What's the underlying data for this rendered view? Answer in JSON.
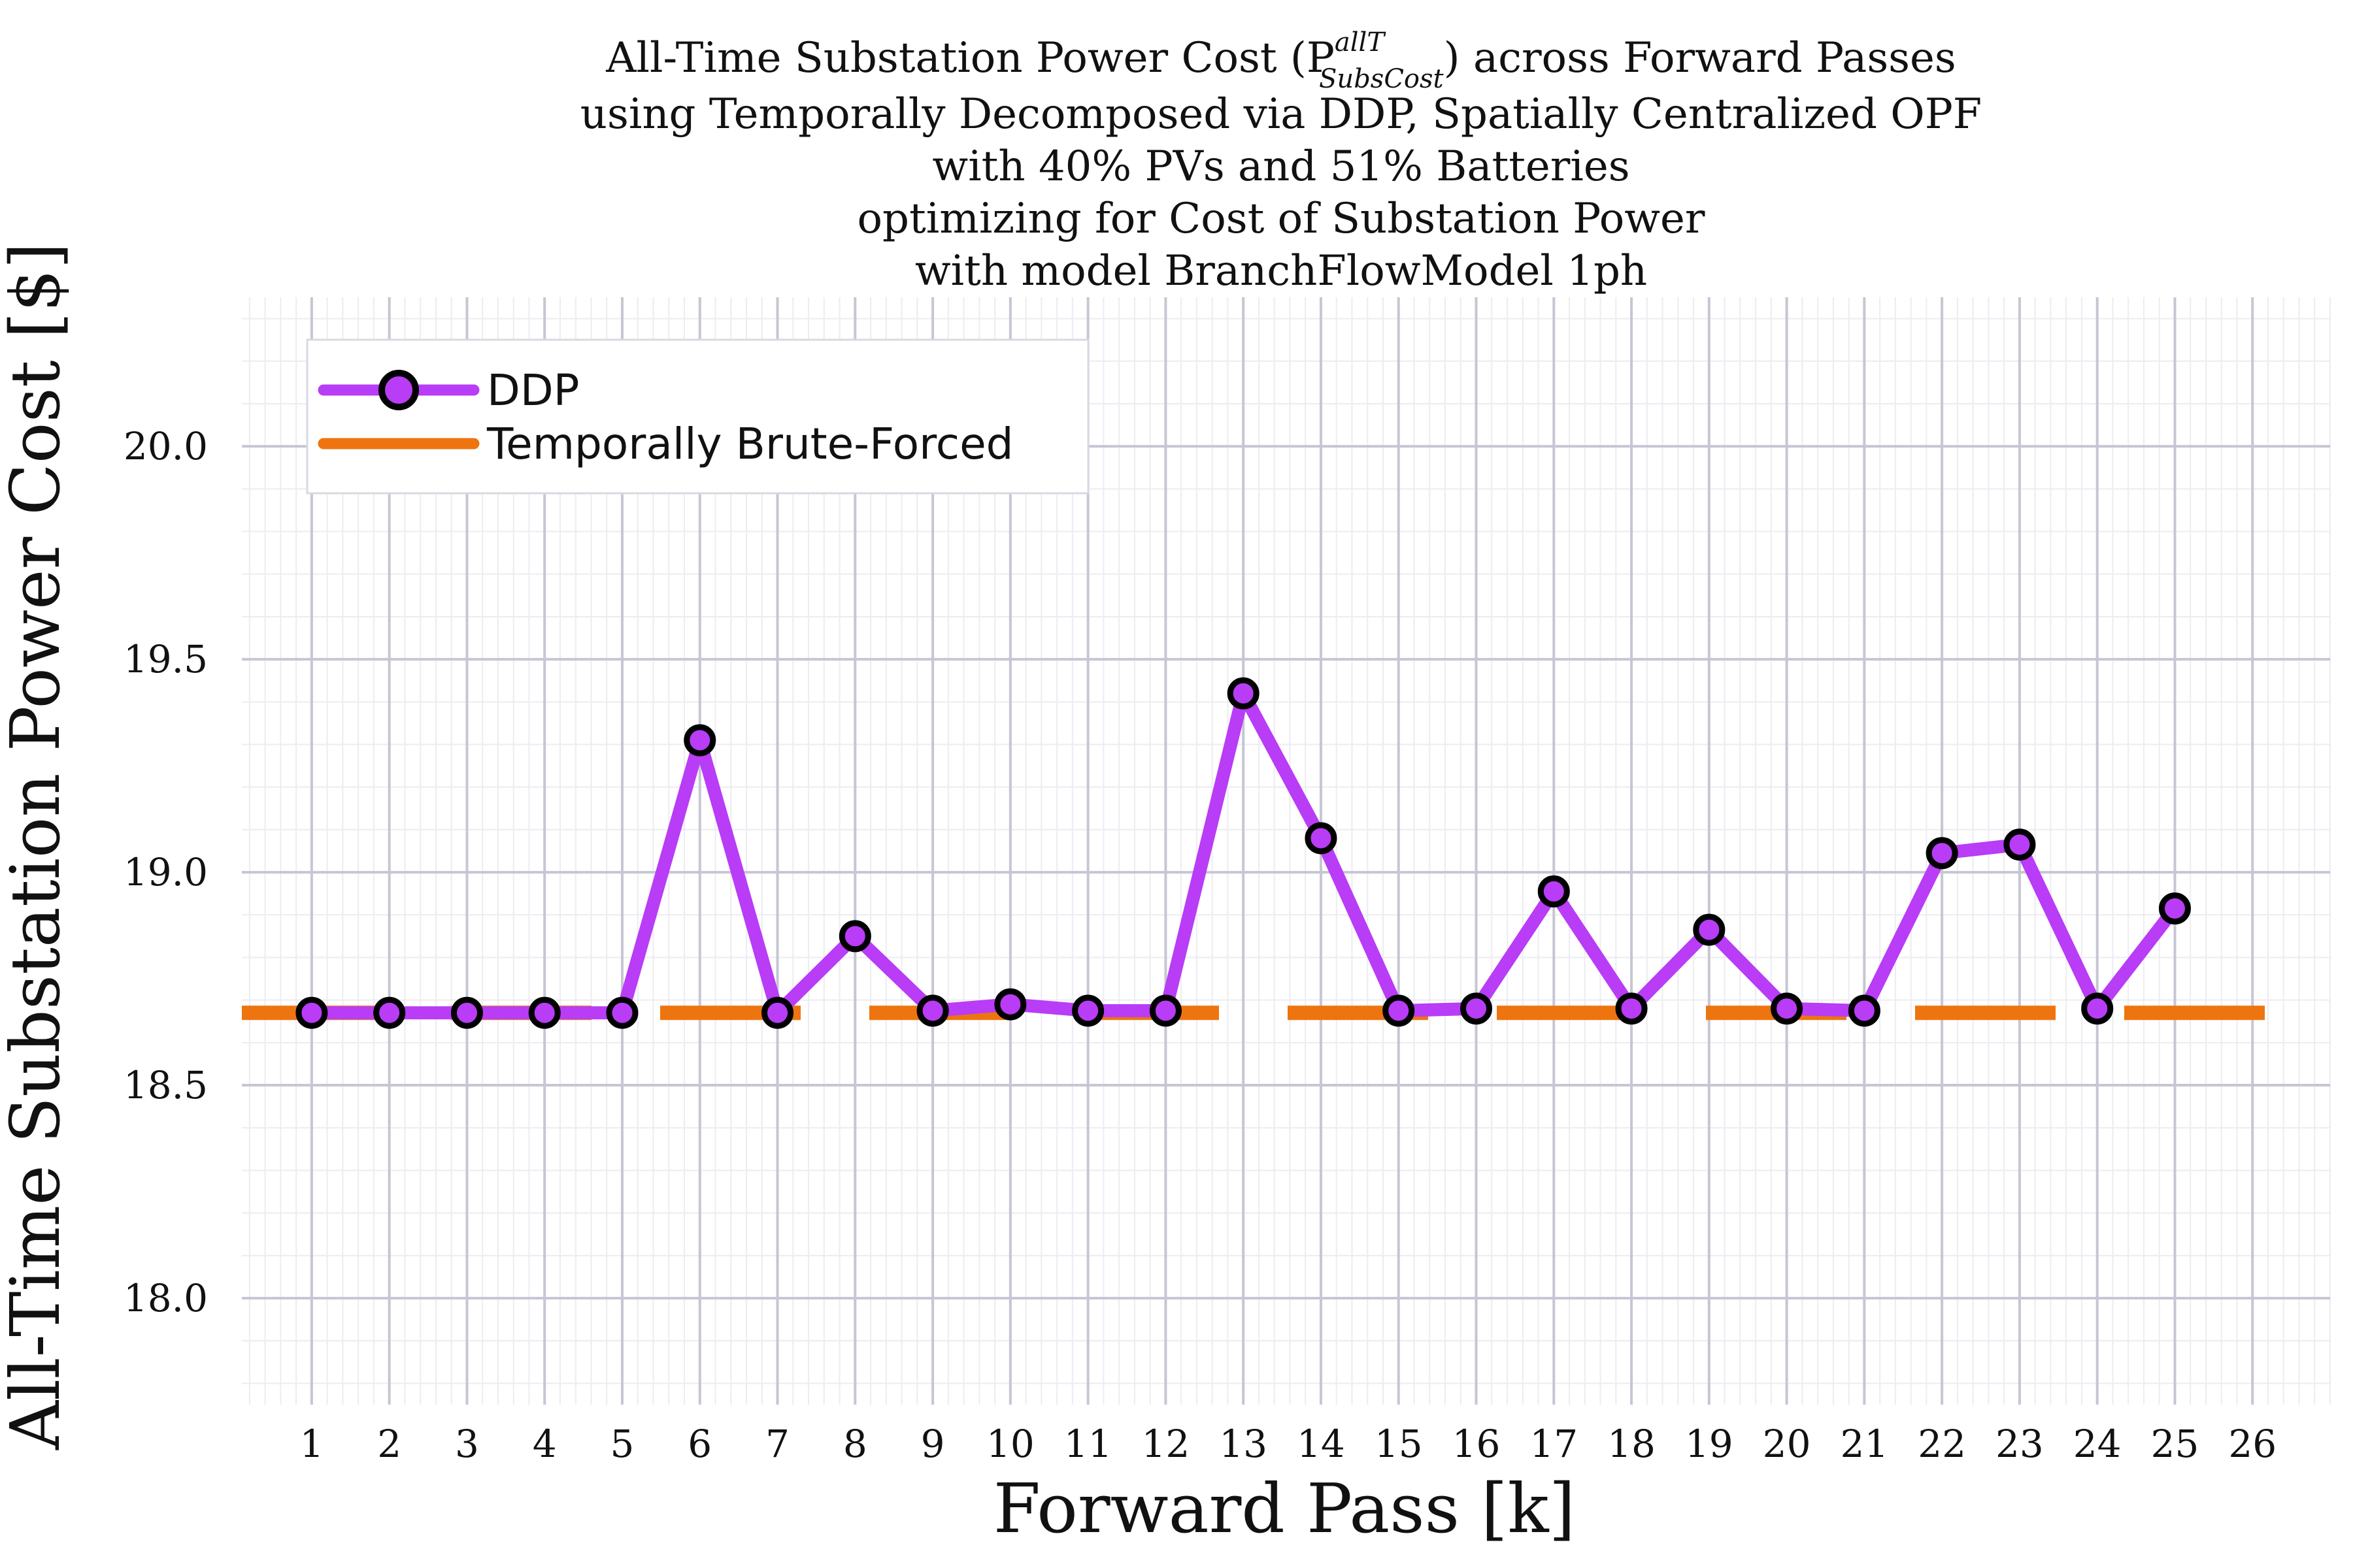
{
  "chart_data": {
    "type": "line",
    "title_lines": [
      "All-Time Substation Power Cost (P",
      "using Temporally Decomposed via DDP, Spatially Centralized OPF",
      "with 40% PVs and 51% Batteries",
      "optimizing for Cost of Substation Power",
      "with model BranchFlowModel 1ph"
    ],
    "title_math": {
      "superscript": "allT",
      "subscript": "SubsCost",
      "suffix": ") across Forward Passes"
    },
    "xlabel": "Forward Pass [k]",
    "ylabel": "All-Time Substation Power Cost [$]",
    "x_ticks": [
      "1",
      "2",
      "3",
      "4",
      "5",
      "6",
      "7",
      "8",
      "9",
      "10",
      "11",
      "12",
      "13",
      "14",
      "15",
      "16",
      "17",
      "18",
      "19",
      "20",
      "21",
      "22",
      "23",
      "24",
      "25",
      "26"
    ],
    "y_ticks": [
      "18.0",
      "18.5",
      "19.0",
      "19.5",
      "20.0"
    ],
    "xlim": [
      0.1,
      27.0
    ],
    "ylim": [
      17.75,
      20.35
    ],
    "grid": true,
    "legend_position": "top-left",
    "series": [
      {
        "name": "DDP",
        "style": "line-with-markers",
        "color": "#b93cf6",
        "marker_edge": "#000000",
        "x": [
          1,
          2,
          3,
          4,
          5,
          6,
          7,
          8,
          9,
          10,
          11,
          12,
          13,
          14,
          15,
          16,
          17,
          18,
          19,
          20,
          21,
          22,
          23,
          24,
          25
        ],
        "values": [
          18.67,
          18.67,
          18.67,
          18.67,
          18.67,
          19.31,
          18.67,
          18.85,
          18.675,
          18.69,
          18.675,
          18.675,
          19.42,
          19.08,
          18.675,
          18.68,
          18.955,
          18.68,
          18.865,
          18.68,
          18.675,
          19.045,
          19.065,
          18.68,
          18.915
        ]
      },
      {
        "name": "Temporally Brute-Forced",
        "style": "dashed",
        "color": "#ee7410",
        "value": 18.67
      }
    ]
  }
}
